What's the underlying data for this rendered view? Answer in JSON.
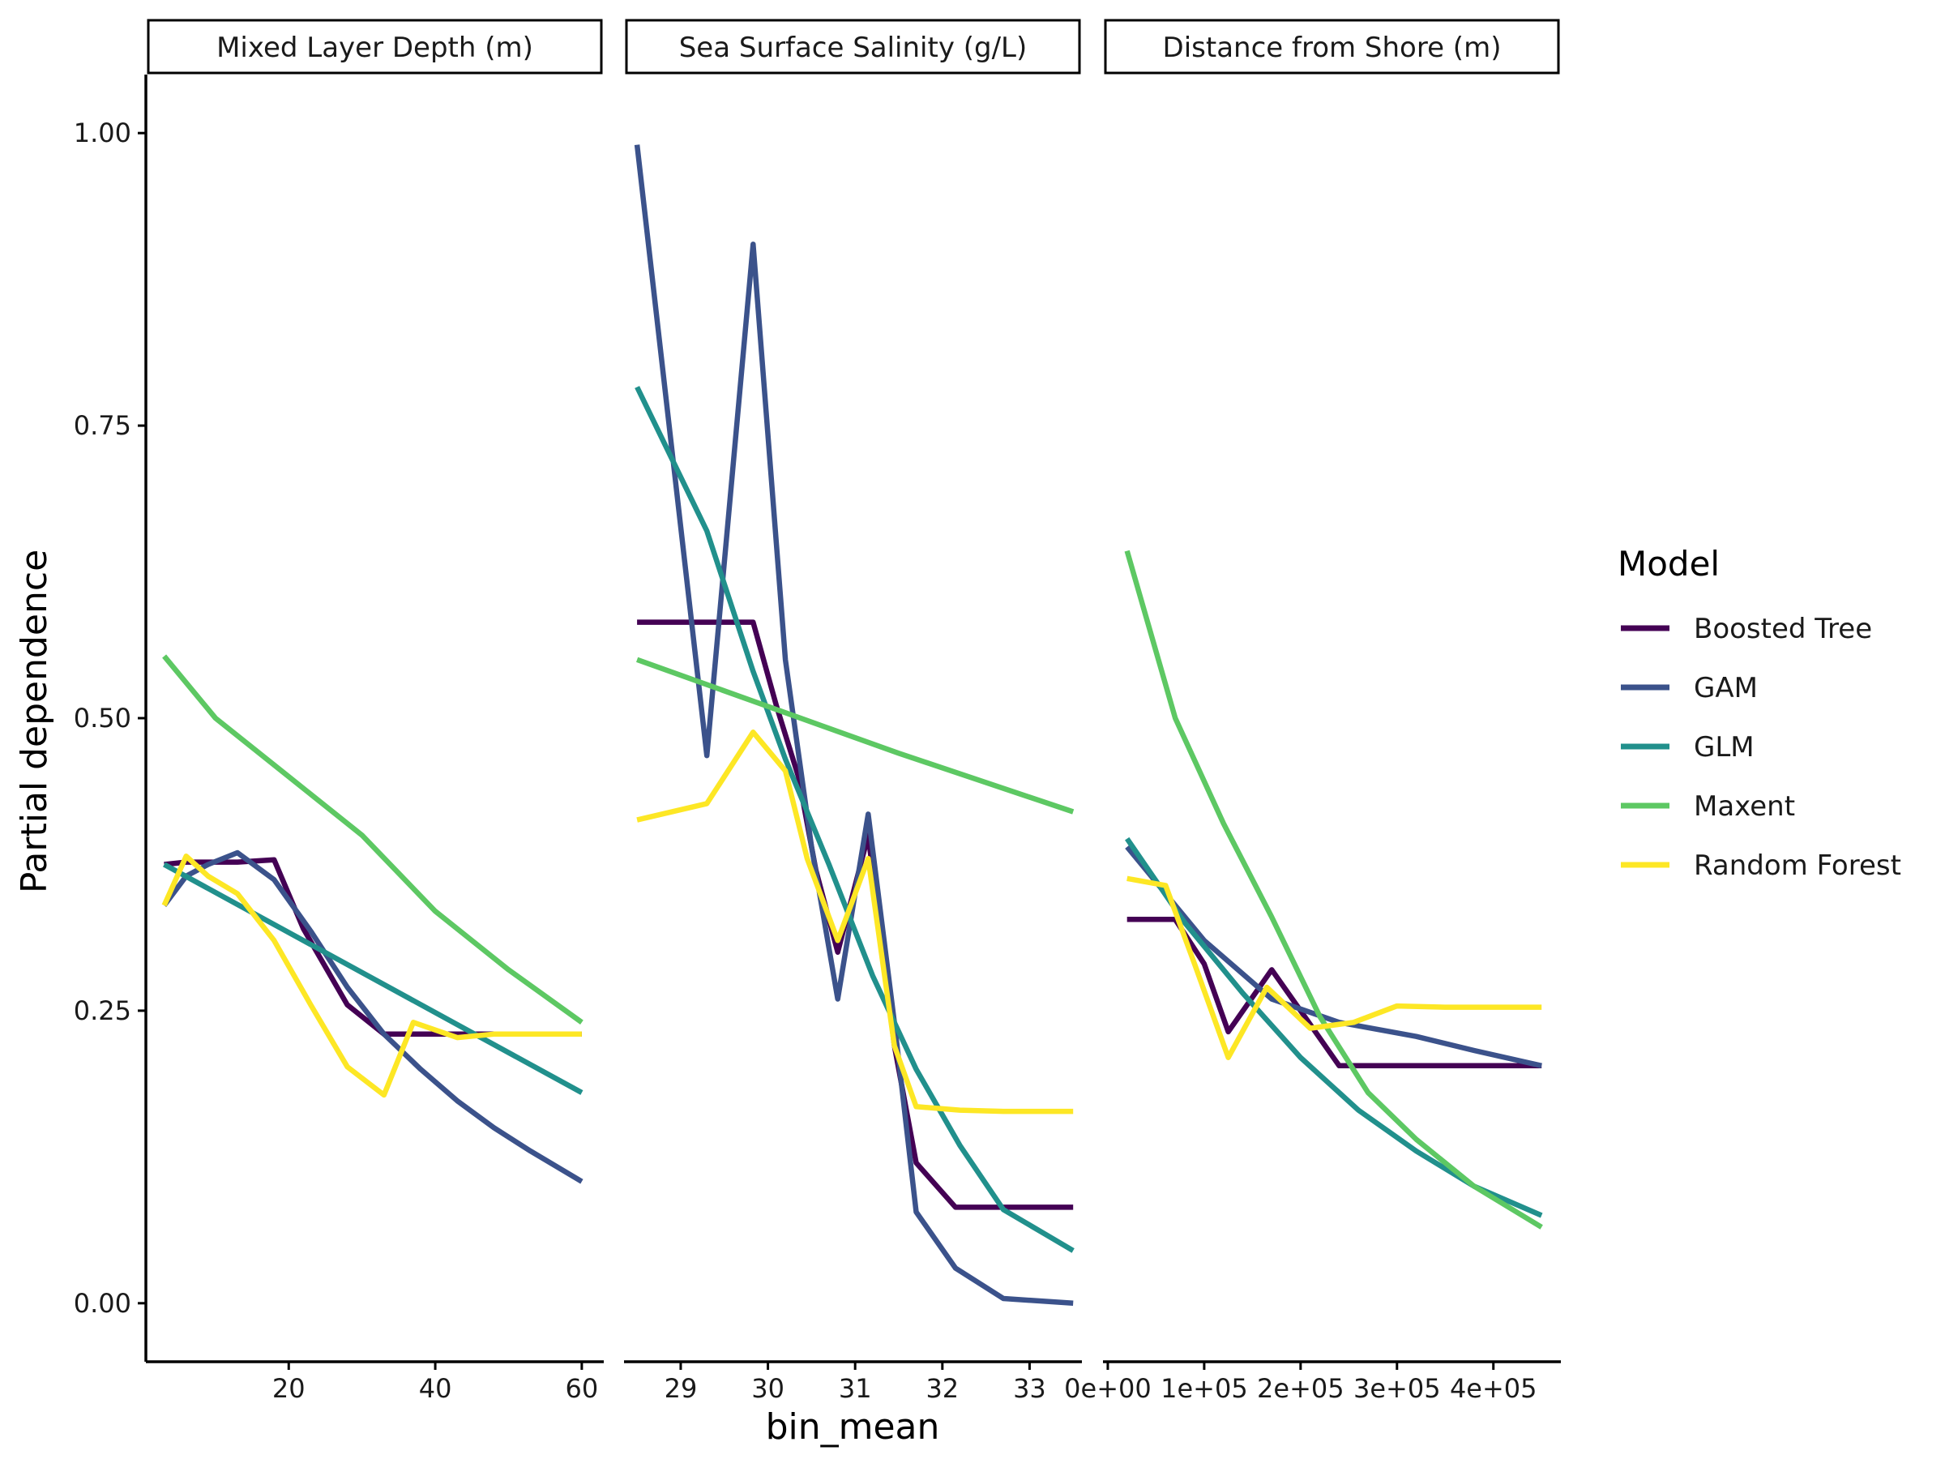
{
  "chart_data": {
    "type": "line",
    "xlabel": "bin_mean",
    "ylabel": "Partial dependence",
    "ylim": [
      -0.05,
      1.05
    ],
    "y_ticks": [
      0.0,
      0.25,
      0.5,
      0.75,
      1.0
    ],
    "y_tick_labels": [
      "0.00",
      "0.25",
      "0.50",
      "0.75",
      "1.00"
    ],
    "legend": {
      "title": "Model",
      "position": "right"
    },
    "grid": false,
    "series_styles": [
      {
        "name": "Boosted Tree",
        "color": "#440154"
      },
      {
        "name": "GAM",
        "color": "#3b528b"
      },
      {
        "name": "GLM",
        "color": "#21908c"
      },
      {
        "name": "Maxent",
        "color": "#5dc863"
      },
      {
        "name": "Random Forest",
        "color": "#fde725"
      }
    ],
    "panels": [
      {
        "title": "Mixed Layer Depth (m)",
        "xlim": [
          0.5,
          63
        ],
        "x_ticks": [
          20,
          40,
          60
        ],
        "x_tick_labels": [
          "20",
          "40",
          "60"
        ],
        "series": [
          {
            "name": "Boosted Tree",
            "x": [
              3,
              6,
              9,
              13,
              18,
              22,
              28,
              33,
              38,
              43,
              48,
              53,
              60
            ],
            "y": [
              0.375,
              0.377,
              0.377,
              0.377,
              0.379,
              0.32,
              0.255,
              0.23,
              0.23,
              0.23,
              0.23,
              0.23,
              0.23
            ]
          },
          {
            "name": "GAM",
            "x": [
              3,
              6,
              9,
              13,
              18,
              23,
              28,
              33,
              38,
              43,
              48,
              53,
              60
            ],
            "y": [
              0.34,
              0.365,
              0.375,
              0.385,
              0.362,
              0.318,
              0.27,
              0.23,
              0.2,
              0.173,
              0.15,
              0.13,
              0.104
            ]
          },
          {
            "name": "GLM",
            "x": [
              3,
              60
            ],
            "y": [
              0.375,
              0.18
            ]
          },
          {
            "name": "Maxent",
            "x": [
              3,
              10,
              20,
              30,
              40,
              50,
              60
            ],
            "y": [
              0.553,
              0.5,
              0.45,
              0.4,
              0.335,
              0.285,
              0.24
            ]
          },
          {
            "name": "Random Forest",
            "x": [
              3,
              6,
              9,
              13,
              18,
              23,
              28,
              33,
              37,
              43,
              48,
              53,
              60
            ],
            "y": [
              0.34,
              0.382,
              0.365,
              0.35,
              0.31,
              0.255,
              0.202,
              0.178,
              0.24,
              0.227,
              0.23,
              0.23,
              0.23
            ]
          }
        ]
      },
      {
        "title": "Sea Surface Salinity (g/L)",
        "xlim": [
          28.35,
          33.6
        ],
        "x_ticks": [
          29,
          30,
          31,
          32,
          33
        ],
        "x_tick_labels": [
          "29",
          "30",
          "31",
          "32",
          "33"
        ],
        "series": [
          {
            "name": "Boosted Tree",
            "x": [
              28.5,
              29.0,
              29.3,
              29.6,
              29.83,
              30.1,
              30.35,
              30.55,
              30.8,
              31.15,
              31.45,
              31.7,
              32.15,
              32.5,
              33.0,
              33.5
            ],
            "y": [
              0.582,
              0.582,
              0.582,
              0.582,
              0.582,
              0.51,
              0.45,
              0.37,
              0.3,
              0.4,
              0.22,
              0.12,
              0.082,
              0.082,
              0.082,
              0.082
            ]
          },
          {
            "name": "GAM",
            "x": [
              28.5,
              29.3,
              29.83,
              30.2,
              30.5,
              30.8,
              31.15,
              31.45,
              31.7,
              32.15,
              32.7,
              33.5
            ],
            "y": [
              0.99,
              0.468,
              0.905,
              0.55,
              0.39,
              0.26,
              0.418,
              0.24,
              0.078,
              0.03,
              0.004,
              0.0
            ]
          },
          {
            "name": "GLM",
            "x": [
              28.5,
              29.3,
              29.83,
              30.2,
              30.7,
              31.2,
              31.7,
              32.2,
              32.7,
              33.5
            ],
            "y": [
              0.783,
              0.66,
              0.54,
              0.465,
              0.375,
              0.28,
              0.2,
              0.135,
              0.08,
              0.045
            ]
          },
          {
            "name": "Maxent",
            "x": [
              28.5,
              30.0,
              31.5,
              33.5
            ],
            "y": [
              0.55,
              0.51,
              0.47,
              0.42
            ]
          },
          {
            "name": "Random Forest",
            "x": [
              28.5,
              29.3,
              29.83,
              30.2,
              30.45,
              30.8,
              31.15,
              31.45,
              31.7,
              32.2,
              32.7,
              33.5
            ],
            "y": [
              0.413,
              0.427,
              0.488,
              0.455,
              0.38,
              0.31,
              0.38,
              0.22,
              0.168,
              0.165,
              0.164,
              0.164
            ]
          }
        ]
      },
      {
        "title": "Distance from Shore (m)",
        "xlim": [
          -5000,
          470000
        ],
        "x_ticks": [
          0,
          100000,
          200000,
          300000,
          400000
        ],
        "x_tick_labels": [
          "0e+00",
          "1e+05",
          "2e+05",
          "3e+05",
          "4e+05"
        ],
        "series": [
          {
            "name": "Boosted Tree",
            "x": [
              20000,
              70000,
              100000,
              125000,
              170000,
              200000,
              240000,
              280000,
              320000,
              380000,
              450000
            ],
            "y": [
              0.328,
              0.328,
              0.29,
              0.232,
              0.285,
              0.25,
              0.203,
              0.203,
              0.203,
              0.203,
              0.203
            ]
          },
          {
            "name": "GAM",
            "x": [
              20000,
              100000,
              170000,
              240000,
              320000,
              380000,
              450000
            ],
            "y": [
              0.39,
              0.31,
              0.26,
              0.24,
              0.228,
              0.216,
              0.203
            ]
          },
          {
            "name": "GLM",
            "x": [
              20000,
              80000,
              140000,
              200000,
              260000,
              320000,
              380000,
              450000
            ],
            "y": [
              0.397,
              0.325,
              0.265,
              0.21,
              0.165,
              0.13,
              0.1,
              0.075
            ]
          },
          {
            "name": "Maxent",
            "x": [
              20000,
              70000,
              120000,
              170000,
              220000,
              270000,
              320000,
              380000,
              450000
            ],
            "y": [
              0.643,
              0.5,
              0.41,
              0.33,
              0.245,
              0.18,
              0.14,
              0.1,
              0.065
            ]
          },
          {
            "name": "Random Forest",
            "x": [
              20000,
              60000,
              90000,
              125000,
              165000,
              210000,
              255000,
              300000,
              350000,
              400000,
              450000
            ],
            "y": [
              0.363,
              0.357,
              0.29,
              0.21,
              0.27,
              0.235,
              0.24,
              0.254,
              0.253,
              0.253,
              0.253
            ]
          }
        ]
      }
    ]
  }
}
